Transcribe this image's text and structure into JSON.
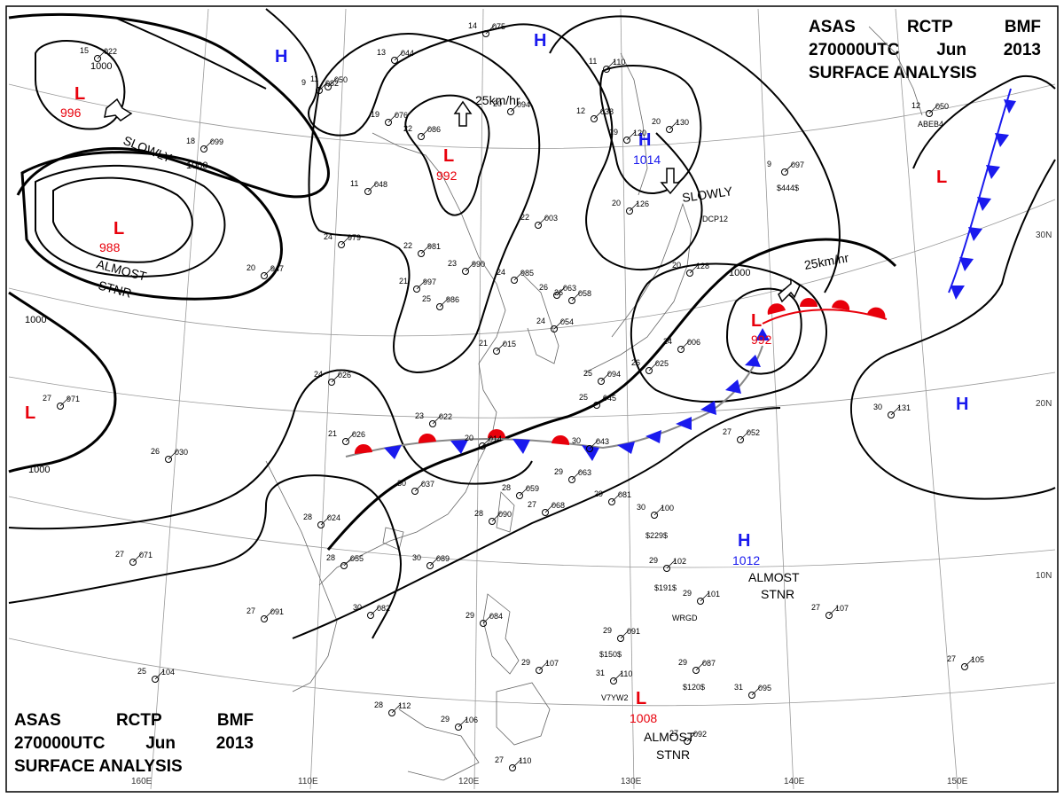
{
  "header": {
    "line1": [
      "ASAS",
      "RCTP",
      "BMF"
    ],
    "line2": [
      "270000UTC",
      "Jun",
      "2013"
    ],
    "line3": "SURFACE ANALYSIS"
  },
  "colors": {
    "low": "#e8000b",
    "high": "#1a1aee",
    "front_warm": "#e8000b",
    "front_cold": "#1a1aee",
    "isobar": "#000000",
    "graticule": "#999999",
    "coast": "#666666"
  },
  "grid_labels": {
    "lon": [
      "110E",
      "120E",
      "130E",
      "140E",
      "150E",
      "160E"
    ],
    "lat": [
      "30N",
      "20N",
      "10N"
    ]
  },
  "pressure_centers": [
    {
      "type": "L",
      "value": "996"
    },
    {
      "type": "L",
      "value": "988"
    },
    {
      "type": "L",
      "value": "992"
    },
    {
      "type": "L",
      "value": "992"
    },
    {
      "type": "L",
      "value": "1008"
    },
    {
      "type": "L",
      "value": ""
    },
    {
      "type": "L",
      "value": ""
    },
    {
      "type": "H",
      "value": "1014"
    },
    {
      "type": "H",
      "value": "1012"
    },
    {
      "type": "H",
      "value": ""
    },
    {
      "type": "H",
      "value": ""
    },
    {
      "type": "H",
      "value": ""
    }
  ],
  "annotations": [
    {
      "text": "SLOWLY"
    },
    {
      "text": "SLOWLY"
    },
    {
      "text": "ALMOST"
    },
    {
      "text": "STNR"
    },
    {
      "text": "ALMOST"
    },
    {
      "text": "STNR"
    },
    {
      "text": "ALMOST"
    },
    {
      "text": "STNR"
    },
    {
      "text": "25km/hr"
    },
    {
      "text": "25km/hr"
    }
  ],
  "isobar_labels": [
    "1000",
    "1000",
    "1000",
    "1000",
    "1000"
  ],
  "stations": [
    {
      "a": "15",
      "b": "022"
    },
    {
      "a": "14",
      "b": "075"
    },
    {
      "a": "13",
      "b": "044"
    },
    {
      "a": "11",
      "b": "050"
    },
    {
      "a": "12",
      "b": "038"
    },
    {
      "a": "20",
      "b": "094"
    },
    {
      "a": "19",
      "b": "076"
    },
    {
      "a": "18",
      "b": "099"
    },
    {
      "a": "11",
      "b": "048"
    },
    {
      "a": "22",
      "b": "086"
    },
    {
      "a": "24",
      "b": "979"
    },
    {
      "a": "22",
      "b": "981"
    },
    {
      "a": "23",
      "b": "990"
    },
    {
      "a": "24",
      "b": "985"
    },
    {
      "a": "22",
      "b": "003"
    },
    {
      "a": "20",
      "b": "947"
    },
    {
      "a": "21",
      "b": "997"
    },
    {
      "a": "25",
      "b": "986"
    },
    {
      "a": "26",
      "b": "058"
    },
    {
      "a": "24",
      "b": "054"
    },
    {
      "a": "21",
      "b": "015"
    },
    {
      "a": "23",
      "b": "022"
    },
    {
      "a": "24",
      "b": "026"
    },
    {
      "a": "27",
      "b": "971"
    },
    {
      "a": "21",
      "b": "026"
    },
    {
      "a": "26",
      "b": "030"
    },
    {
      "a": "30",
      "b": "037"
    },
    {
      "a": "28",
      "b": "059"
    },
    {
      "a": "29",
      "b": "063"
    },
    {
      "a": "29",
      "b": "081"
    },
    {
      "a": "28",
      "b": "090"
    },
    {
      "a": "27",
      "b": "068"
    },
    {
      "a": "28",
      "b": "055"
    },
    {
      "a": "30",
      "b": "089"
    },
    {
      "a": "30",
      "b": "100"
    },
    {
      "a": "29",
      "b": "102"
    },
    {
      "a": "29",
      "b": "101"
    },
    {
      "a": "27",
      "b": "071"
    },
    {
      "a": "27",
      "b": "091"
    },
    {
      "a": "30",
      "b": "082"
    },
    {
      "a": "29",
      "b": "084"
    },
    {
      "a": "29",
      "b": "091"
    },
    {
      "a": "29",
      "b": "087"
    },
    {
      "a": "25",
      "b": "104"
    },
    {
      "a": "28",
      "b": "112"
    },
    {
      "a": "27",
      "b": "110"
    },
    {
      "a": "29",
      "b": "106"
    },
    {
      "a": "29",
      "b": "107"
    },
    {
      "a": "31",
      "b": "110"
    },
    {
      "a": "31",
      "b": "095"
    },
    {
      "a": "27",
      "b": "092"
    },
    {
      "a": "27",
      "b": "107"
    },
    {
      "a": "27",
      "b": "105"
    },
    {
      "a": "30",
      "b": "131"
    },
    {
      "a": "27",
      "b": "052"
    },
    {
      "a": "25",
      "b": "094"
    },
    {
      "a": "25",
      "b": "045"
    },
    {
      "a": "26",
      "b": "025"
    },
    {
      "a": "24",
      "b": "006"
    },
    {
      "a": "20",
      "b": "128"
    },
    {
      "a": "20",
      "b": "126"
    },
    {
      "a": "19",
      "b": "120"
    },
    {
      "a": "20",
      "b": "130"
    },
    {
      "a": "11",
      "b": "110"
    },
    {
      "a": "9",
      "b": "082"
    },
    {
      "a": "12",
      "b": "050"
    },
    {
      "a": "9",
      "b": "097"
    },
    {
      "a": "26",
      "b": "063"
    },
    {
      "a": "20",
      "b": "014"
    },
    {
      "a": "30",
      "b": "043"
    },
    {
      "a": "28",
      "b": "024"
    }
  ],
  "station_ids": [
    "DCP12",
    "WRGD",
    "V7YW2",
    "ABEB4",
    "$229$",
    "$191$",
    "$150$",
    "$120$",
    "$444$"
  ]
}
